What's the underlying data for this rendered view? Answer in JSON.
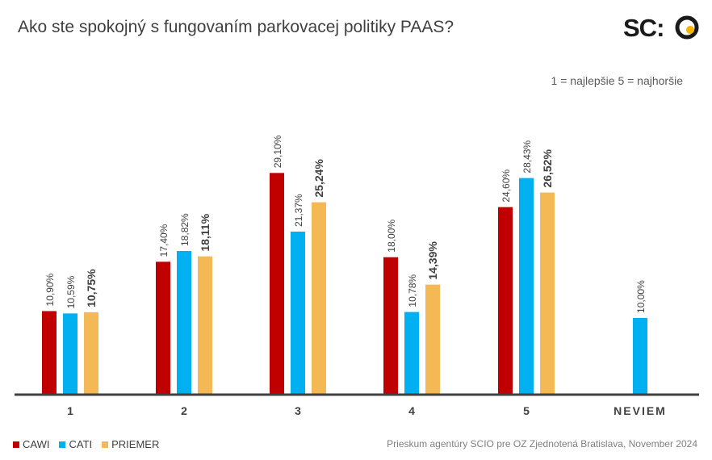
{
  "title": "Ako ste spokojný s fungovaním parkovacej politiky PAAS?",
  "logo_text": "SC:O",
  "scale_note": "1 = najlepšie 5 = najhoršie",
  "source": "Prieskum agentúry SCIO pre OZ Zjednotená Bratislava, November 2024",
  "colors": {
    "CAWI": "#c00000",
    "CATI": "#00b0f0",
    "PRIEMER": "#f4b955",
    "logo_accent": "#f4b400"
  },
  "chart_data": {
    "type": "bar",
    "title": "Ako ste spokojný s fungovaním parkovacej politiky PAAS?",
    "categories": [
      "1",
      "2",
      "3",
      "4",
      "5",
      "NEVIEM"
    ],
    "series": [
      {
        "name": "CAWI",
        "values": [
          10.9,
          17.4,
          29.1,
          18.0,
          24.6,
          null
        ],
        "labels": [
          "10,90%",
          "17,40%",
          "29,10%",
          "18,00%",
          "24,60%",
          ""
        ]
      },
      {
        "name": "CATI",
        "values": [
          10.59,
          18.82,
          21.37,
          10.78,
          28.43,
          10.0
        ],
        "labels": [
          "10,59%",
          "18,82%",
          "21,37%",
          "10,78%",
          "28,43%",
          "10,00%"
        ]
      },
      {
        "name": "PRIEMER",
        "values": [
          10.75,
          18.11,
          25.24,
          14.39,
          26.52,
          null
        ],
        "labels": [
          "10,75%",
          "18,11%",
          "25,24%",
          "14,39%",
          "26,52%",
          ""
        ]
      }
    ],
    "ylim": [
      0,
      37
    ],
    "grid": false,
    "legend": "bottom-left"
  }
}
